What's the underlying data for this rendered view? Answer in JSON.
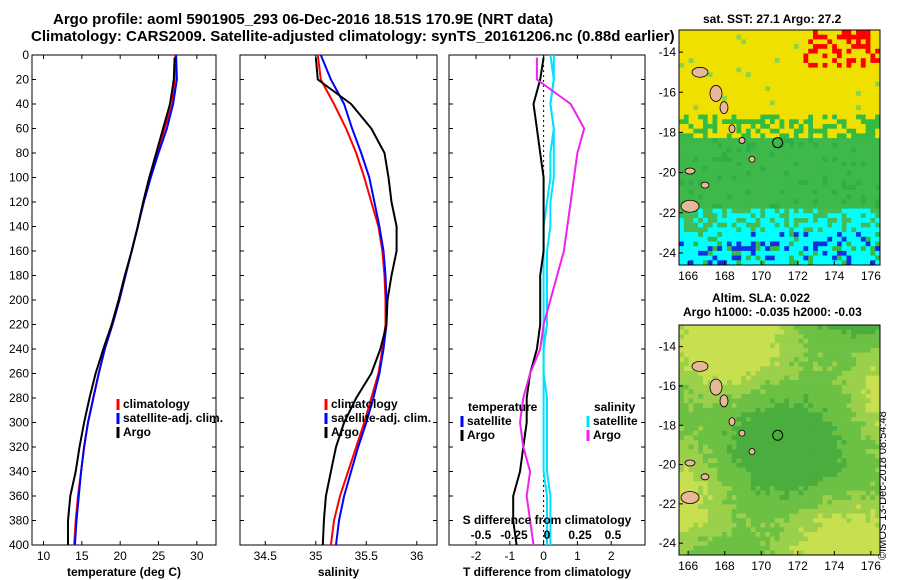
{
  "title_line1": "Argo profile: aoml 5901905_293 06-Dec-2016 18.51S 170.9E (NRT data)",
  "title_line2": "Climatology: CARS2009. Satellite-adjusted climatology: synTS_20161206.nc (0.88d earlier)",
  "map1_title": "sat. SST: 27.1 Argo: 27.2",
  "map2_title_line1": "Altim. SLA: 0.022",
  "map2_title_line2": "Argo h1000: -0.035 h2000: -0.03",
  "stamp": "©IMOS 13-Dec-2018 08:54:48",
  "colors": {
    "climatology": "#ff0000",
    "satellite": "#0000ff",
    "argo": "#000000",
    "sat_diff": "#00e0ff",
    "sal_diff": "#ee22ee"
  },
  "chart_data": [
    {
      "type": "line",
      "name": "temperature",
      "xlabel": "temperature (deg C)",
      "ylabel": "",
      "xlim": [
        8.5,
        32.5
      ],
      "ylim": [
        400,
        0
      ],
      "xticks": [
        10,
        15,
        20,
        25,
        30
      ],
      "yticks": [
        0,
        20,
        40,
        60,
        80,
        100,
        120,
        140,
        160,
        180,
        200,
        220,
        240,
        260,
        280,
        300,
        320,
        340,
        360,
        380,
        400
      ],
      "legend": [
        "climatology",
        "satellite-adj. clim.",
        "Argo"
      ],
      "series": [
        {
          "name": "climatology",
          "x": [
            27.2,
            27.1,
            26.8,
            25.8,
            24.8,
            23.8,
            23.0,
            22.3,
            21.5,
            20.7,
            19.9,
            19.0,
            18.0,
            17.2,
            16.5,
            15.8,
            15.3,
            14.9,
            14.5,
            14.2,
            14.0
          ],
          "y": [
            0,
            20,
            40,
            60,
            80,
            100,
            120,
            140,
            160,
            180,
            200,
            220,
            240,
            260,
            280,
            300,
            320,
            340,
            360,
            380,
            400
          ]
        },
        {
          "name": "satellite-adj. clim.",
          "x": [
            27.3,
            27.4,
            26.9,
            26.1,
            25.0,
            24.0,
            23.1,
            22.3,
            21.5,
            20.7,
            19.9,
            19.0,
            18.0,
            17.2,
            16.5,
            15.8,
            15.3,
            14.9,
            14.6,
            14.3,
            14.1
          ],
          "y": [
            0,
            20,
            40,
            60,
            80,
            100,
            120,
            140,
            160,
            180,
            200,
            220,
            240,
            260,
            280,
            300,
            320,
            340,
            360,
            380,
            400
          ]
        },
        {
          "name": "Argo",
          "x": [
            27.1,
            27.0,
            26.5,
            25.6,
            24.7,
            23.8,
            23.0,
            22.3,
            21.5,
            20.6,
            19.8,
            18.9,
            17.8,
            16.8,
            16.0,
            15.3,
            14.7,
            14.2,
            13.5,
            13.2,
            13.2
          ],
          "y": [
            2,
            20,
            40,
            60,
            80,
            100,
            120,
            140,
            160,
            180,
            200,
            220,
            240,
            260,
            280,
            300,
            320,
            340,
            360,
            380,
            400
          ]
        }
      ]
    },
    {
      "type": "line",
      "name": "salinity",
      "xlabel": "salinity",
      "ylabel": "",
      "xlim": [
        34.25,
        36.2
      ],
      "ylim": [
        400,
        0
      ],
      "xticks": [
        34.5,
        35,
        35.5,
        36
      ],
      "legend": [
        "climatology",
        "satellite-adj. clim.",
        "Argo"
      ],
      "series": [
        {
          "name": "climatology",
          "x": [
            35.02,
            35.05,
            35.18,
            35.3,
            35.4,
            35.48,
            35.55,
            35.62,
            35.66,
            35.68,
            35.69,
            35.69,
            35.66,
            35.62,
            35.55,
            35.48,
            35.4,
            35.32,
            35.24,
            35.18,
            35.15
          ],
          "y": [
            0,
            20,
            40,
            60,
            80,
            100,
            120,
            140,
            160,
            180,
            200,
            220,
            240,
            260,
            280,
            300,
            320,
            340,
            360,
            380,
            400
          ]
        },
        {
          "name": "satellite-adj. clim.",
          "x": [
            35.05,
            35.15,
            35.28,
            35.36,
            35.45,
            35.53,
            35.58,
            35.63,
            35.67,
            35.69,
            35.7,
            35.7,
            35.67,
            35.63,
            35.57,
            35.5,
            35.42,
            35.35,
            35.28,
            35.23,
            35.2
          ],
          "y": [
            0,
            20,
            40,
            60,
            80,
            100,
            120,
            140,
            160,
            180,
            200,
            220,
            240,
            260,
            280,
            300,
            320,
            340,
            360,
            380,
            400
          ]
        },
        {
          "name": "Argo",
          "x": [
            35.0,
            35.02,
            35.35,
            35.55,
            35.68,
            35.72,
            35.75,
            35.8,
            35.8,
            35.75,
            35.71,
            35.7,
            35.64,
            35.55,
            35.4,
            35.28,
            35.2,
            35.15,
            35.1,
            35.08,
            35.07
          ],
          "y": [
            2,
            20,
            40,
            60,
            80,
            100,
            120,
            140,
            160,
            180,
            200,
            220,
            240,
            260,
            280,
            300,
            320,
            340,
            360,
            380,
            400
          ]
        }
      ]
    },
    {
      "type": "line",
      "name": "difference",
      "xlabel": "T difference from climatology",
      "top_xlabel": "S difference from climatology",
      "xlim": [
        -2.8,
        3.0
      ],
      "ylim": [
        400,
        0
      ],
      "xticks": [
        -2,
        -1,
        0,
        1,
        2
      ],
      "top_ticks": [
        "-0.5",
        "-0.25",
        "0",
        "0.25",
        "0.5"
      ],
      "legend_temperature_title": "temperature",
      "legend_salinity_title": "salinity",
      "legend_temperature": [
        "satellite",
        "Argo"
      ],
      "legend_salinity": [
        "satellite",
        "Argo"
      ],
      "series": [
        {
          "name": "temperature satellite",
          "x": [
            0.2,
            0.3,
            0.2,
            0.3,
            0.2,
            0.2,
            0.1,
            0.0,
            0.0,
            0.0,
            0.0,
            0.0,
            0.0,
            0.0,
            0.0,
            0.0,
            0.0,
            0.0,
            0.1,
            0.1,
            0.1
          ],
          "y": [
            0,
            20,
            40,
            60,
            80,
            100,
            120,
            140,
            160,
            180,
            200,
            220,
            240,
            260,
            280,
            300,
            320,
            340,
            360,
            380,
            400
          ]
        },
        {
          "name": "temperature Argo",
          "x": [
            0.0,
            -0.1,
            -0.3,
            -0.2,
            -0.1,
            0.0,
            0.0,
            0.0,
            0.0,
            -0.1,
            -0.1,
            -0.1,
            -0.2,
            -0.4,
            -0.5,
            -0.5,
            -0.6,
            -0.7,
            -0.9,
            -0.9,
            -0.8
          ],
          "y": [
            2,
            20,
            40,
            60,
            80,
            100,
            120,
            140,
            160,
            180,
            200,
            220,
            240,
            260,
            280,
            300,
            320,
            340,
            360,
            380,
            400
          ]
        },
        {
          "name": "salinity satellite",
          "x": [
            0.3,
            0.3,
            0.2,
            0.3,
            0.3,
            0.3,
            0.2,
            0.2,
            0.1,
            0.1,
            0.1,
            0.1,
            0.0,
            0.0,
            0.1,
            0.1,
            0.1,
            0.1,
            0.2,
            0.2,
            0.2
          ],
          "y": [
            0,
            20,
            40,
            60,
            80,
            100,
            120,
            140,
            160,
            180,
            200,
            220,
            240,
            260,
            280,
            300,
            320,
            340,
            360,
            380,
            400
          ]
        },
        {
          "name": "salinity Argo",
          "x": [
            -0.2,
            -0.2,
            0.8,
            1.2,
            1.0,
            0.9,
            0.8,
            0.7,
            0.6,
            0.4,
            0.2,
            0.0,
            -0.1,
            -0.4,
            -0.6,
            -0.7,
            -0.6,
            -0.4,
            -0.5,
            -0.4,
            -0.3
          ],
          "y": [
            2,
            20,
            40,
            60,
            80,
            100,
            120,
            140,
            160,
            180,
            200,
            220,
            240,
            260,
            280,
            300,
            320,
            340,
            360,
            380,
            400
          ]
        }
      ]
    },
    {
      "type": "heatmap",
      "name": "sst-map",
      "title": "sat. SST: 27.1 Argo: 27.2",
      "xlim": [
        165.5,
        176.5
      ],
      "ylim": [
        -24.6,
        -12.9
      ],
      "xticks": [
        166,
        168,
        170,
        172,
        174,
        176
      ],
      "yticks": [
        -14,
        -16,
        -18,
        -20,
        -22,
        -24
      ],
      "argo_position": {
        "lon": 170.9,
        "lat": -18.51
      }
    },
    {
      "type": "heatmap",
      "name": "sla-map",
      "title": "Altim. SLA: 0.022",
      "xlim": [
        165.5,
        176.5
      ],
      "ylim": [
        -24.6,
        -12.9
      ],
      "xticks": [
        166,
        168,
        170,
        172,
        174,
        176
      ],
      "yticks": [
        -14,
        -16,
        -18,
        -20,
        -22,
        -24
      ],
      "argo_position": {
        "lon": 170.9,
        "lat": -18.51
      }
    }
  ]
}
